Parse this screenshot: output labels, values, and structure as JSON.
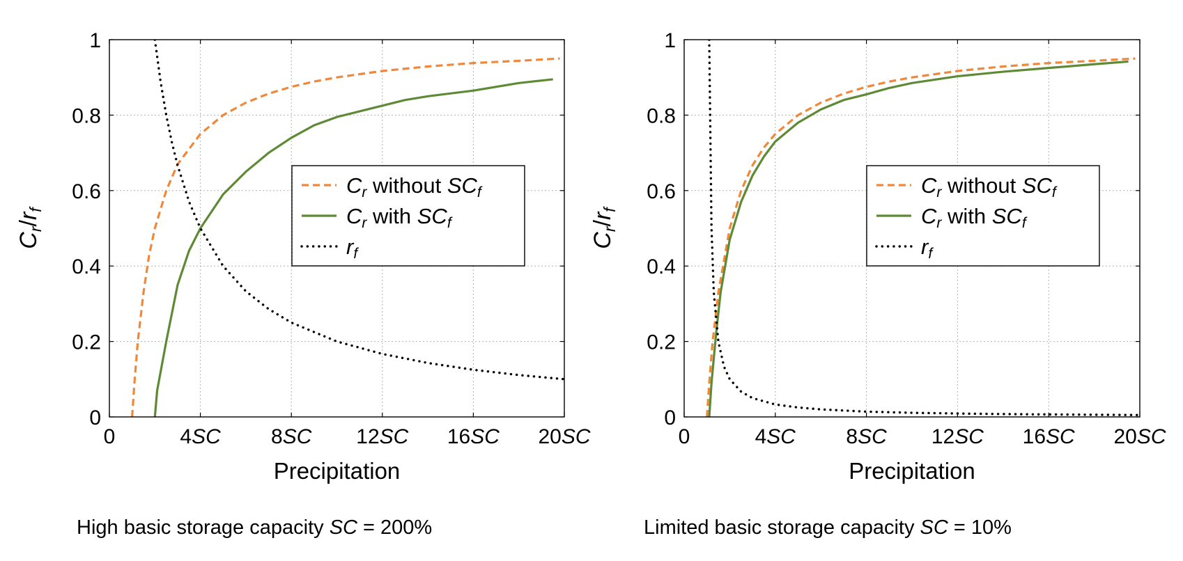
{
  "colors": {
    "without": "#f0883a",
    "with": "#5f8a35",
    "rf": "#000000",
    "grid": "#b0b0b0"
  },
  "chart_data": [
    {
      "type": "line",
      "id": "left",
      "xlabel": "Precipitation",
      "ylabel": "C_r/r_f",
      "xlim": [
        0,
        20
      ],
      "ylim": [
        0,
        1
      ],
      "xticks": [
        {
          "value": 0,
          "num": "0",
          "unit": ""
        },
        {
          "value": 4,
          "num": "4",
          "unit": "SC"
        },
        {
          "value": 8,
          "num": "8",
          "unit": "SC"
        },
        {
          "value": 12,
          "num": "12",
          "unit": "SC"
        },
        {
          "value": 16,
          "num": "16",
          "unit": "SC"
        },
        {
          "value": 20,
          "num": "20",
          "unit": "SC"
        }
      ],
      "yticks": [
        {
          "value": 0,
          "label": "0"
        },
        {
          "value": 0.2,
          "label": "0.2"
        },
        {
          "value": 0.4,
          "label": "0.4"
        },
        {
          "value": 0.6,
          "label": "0.6"
        },
        {
          "value": 0.8,
          "label": "0.8"
        },
        {
          "value": 1,
          "label": "1"
        }
      ],
      "grid": true,
      "legend_position": "right",
      "series": [
        {
          "key": "without",
          "label_main": "C",
          "label_sub": "r",
          "label_rest": "without",
          "label_tail": "SC",
          "label_tail_sub": "f",
          "style": "dashed",
          "x": [
            1.0,
            1.1,
            1.25,
            1.5,
            1.75,
            2.0,
            2.5,
            3.0,
            4.0,
            5.0,
            6.0,
            7.0,
            8.0,
            9.0,
            10.0,
            12.0,
            14.0,
            16.0,
            18.0,
            19.8
          ],
          "y": [
            0.0,
            0.09,
            0.2,
            0.33,
            0.43,
            0.5,
            0.6,
            0.67,
            0.75,
            0.8,
            0.833,
            0.857,
            0.875,
            0.889,
            0.9,
            0.917,
            0.929,
            0.938,
            0.944,
            0.95
          ]
        },
        {
          "key": "with",
          "label_main": "C",
          "label_sub": "r",
          "label_rest": "with",
          "label_tail": "SC",
          "label_tail_sub": "f",
          "style": "solid",
          "x": [
            2.0,
            2.1,
            2.5,
            3.0,
            3.5,
            4.0,
            5.0,
            6.0,
            7.0,
            8.0,
            9.0,
            10.0,
            11.0,
            12.0,
            13.0,
            14.0,
            16.0,
            18.0,
            19.5
          ],
          "y": [
            0.0,
            0.07,
            0.2,
            0.35,
            0.44,
            0.5,
            0.59,
            0.65,
            0.7,
            0.74,
            0.773,
            0.795,
            0.81,
            0.825,
            0.84,
            0.85,
            0.865,
            0.885,
            0.895
          ]
        },
        {
          "key": "rf",
          "label_main": "r",
          "label_sub": "f",
          "label_rest": "",
          "label_tail": "",
          "label_tail_sub": "",
          "style": "dotted",
          "x": [
            2.0,
            2.25,
            2.5,
            2.75,
            3.0,
            3.5,
            4.0,
            5.0,
            6.0,
            7.0,
            8.0,
            10.0,
            12.0,
            14.0,
            16.0,
            18.0,
            20.0
          ],
          "y": [
            1.0,
            0.889,
            0.8,
            0.727,
            0.667,
            0.571,
            0.5,
            0.4,
            0.333,
            0.286,
            0.25,
            0.2,
            0.167,
            0.143,
            0.125,
            0.111,
            0.1
          ]
        }
      ]
    },
    {
      "type": "line",
      "id": "right",
      "xlabel": "Precipitation",
      "ylabel": "C_r/r_f",
      "xlim": [
        0,
        20
      ],
      "ylim": [
        0,
        1
      ],
      "xticks": [
        {
          "value": 0,
          "num": "0",
          "unit": ""
        },
        {
          "value": 4,
          "num": "4",
          "unit": "SC"
        },
        {
          "value": 8,
          "num": "8",
          "unit": "SC"
        },
        {
          "value": 12,
          "num": "12",
          "unit": "SC"
        },
        {
          "value": 16,
          "num": "16",
          "unit": "SC"
        },
        {
          "value": 20,
          "num": "20",
          "unit": "SC"
        }
      ],
      "yticks": [
        {
          "value": 0,
          "label": "0"
        },
        {
          "value": 0.2,
          "label": "0.2"
        },
        {
          "value": 0.4,
          "label": "0.4"
        },
        {
          "value": 0.6,
          "label": "0.6"
        },
        {
          "value": 0.8,
          "label": "0.8"
        },
        {
          "value": 1,
          "label": "1"
        }
      ],
      "grid": true,
      "legend_position": "right",
      "series": [
        {
          "key": "without",
          "label_main": "C",
          "label_sub": "r",
          "label_rest": "without",
          "label_tail": "SC",
          "label_tail_sub": "f",
          "style": "dashed",
          "x": [
            1.0,
            1.1,
            1.25,
            1.5,
            2.0,
            2.5,
            3.0,
            3.5,
            4.0,
            5.0,
            6.0,
            7.0,
            8.0,
            9.0,
            10.0,
            12.0,
            14.0,
            16.0,
            18.0,
            19.8
          ],
          "y": [
            0.0,
            0.09,
            0.2,
            0.33,
            0.5,
            0.6,
            0.667,
            0.714,
            0.75,
            0.8,
            0.833,
            0.857,
            0.875,
            0.889,
            0.9,
            0.917,
            0.929,
            0.938,
            0.944,
            0.95
          ]
        },
        {
          "key": "with",
          "label_main": "C",
          "label_sub": "r",
          "label_rest": "with",
          "label_tail": "SC",
          "label_tail_sub": "f",
          "style": "solid",
          "x": [
            1.1,
            1.2,
            1.4,
            1.6,
            2.0,
            2.5,
            3.0,
            3.5,
            4.0,
            5.0,
            6.0,
            7.0,
            8.0,
            9.0,
            10.0,
            12.0,
            14.0,
            16.0,
            18.0,
            19.5
          ],
          "y": [
            0.0,
            0.09,
            0.22,
            0.33,
            0.47,
            0.57,
            0.64,
            0.69,
            0.73,
            0.78,
            0.815,
            0.84,
            0.855,
            0.872,
            0.885,
            0.903,
            0.915,
            0.925,
            0.935,
            0.942
          ]
        },
        {
          "key": "rf",
          "label_main": "r",
          "label_sub": "f",
          "label_rest": "",
          "label_tail": "",
          "label_tail_sub": "",
          "style": "dotted",
          "x": [
            1.1,
            1.2,
            1.3,
            1.5,
            1.75,
            2.0,
            2.5,
            3.0,
            4.0,
            5.0,
            6.0,
            8.0,
            10.0,
            12.0,
            15.0,
            20.0
          ],
          "y": [
            1.0,
            0.5,
            0.33,
            0.2,
            0.133,
            0.1,
            0.067,
            0.05,
            0.033,
            0.025,
            0.02,
            0.014,
            0.011,
            0.009,
            0.007,
            0.005
          ]
        }
      ]
    }
  ],
  "captions": {
    "left": {
      "prefix": "High basic storage capacity ",
      "var": "SC",
      "eq": " = 200%"
    },
    "right": {
      "prefix": "Limited basic storage capacity ",
      "var": "SC",
      "eq": " = 10%"
    }
  }
}
